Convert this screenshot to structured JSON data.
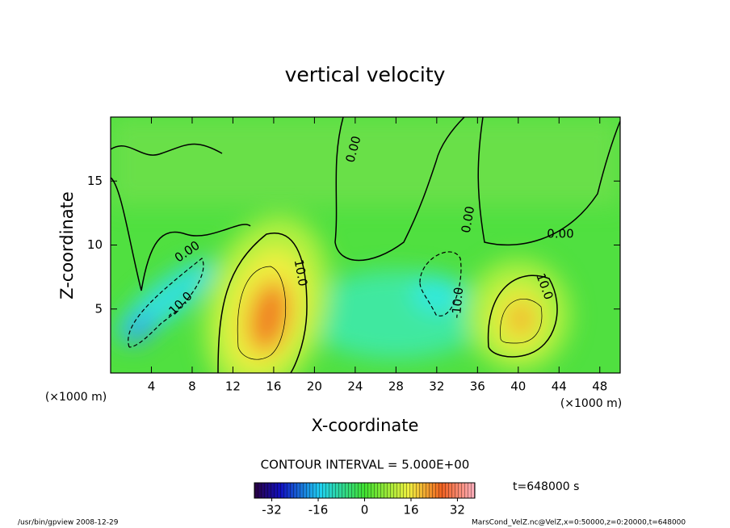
{
  "chart_data": {
    "type": "contour",
    "title": "vertical velocity",
    "xlabel": "X-coordinate",
    "ylabel": "Z-coordinate",
    "x_unit_label": "(×1000 m)",
    "xlim": [
      0,
      50
    ],
    "xticks": [
      4,
      8,
      12,
      16,
      20,
      24,
      28,
      32,
      36,
      40,
      44,
      48
    ],
    "ylim": [
      0,
      20
    ],
    "yticks": [
      5,
      10,
      15
    ],
    "contour_labels": [
      "0.00",
      "0.00",
      "0.00",
      "0.00",
      "10.0",
      "10.0",
      "-10.0",
      "-10.0"
    ],
    "contour_interval_text": "CONTOUR INTERVAL = 5.000E+00",
    "colorbar": {
      "clim": [
        -38,
        38
      ],
      "ticks": [
        -32,
        -16,
        0,
        16,
        32
      ]
    },
    "time_label": "t=648000 s",
    "footer_left": "/usr/bin/gpview  2008-12-29",
    "footer_right": "MarsCond_VelZ.nc@VelZ,x=0:50000,z=0:20000,t=648000"
  }
}
